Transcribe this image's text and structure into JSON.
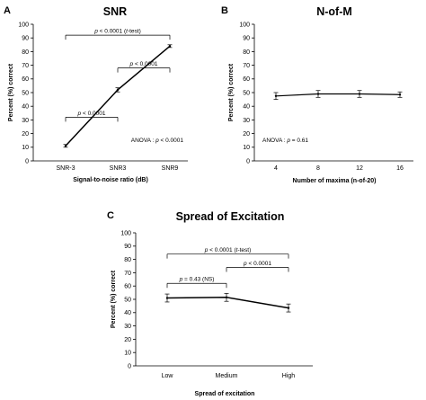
{
  "chart_data": [
    {
      "panel": "A",
      "type": "line",
      "title": "SNR",
      "xlabel": "Signal-to-noise ratio (dB)",
      "ylabel": "Percent (%) correct",
      "categories": [
        "SNR-3",
        "SNR3",
        "SNR9"
      ],
      "values": [
        11,
        52,
        84
      ],
      "errors": [
        1,
        1.5,
        1
      ],
      "ylim": [
        0,
        100
      ],
      "yticks": [
        "0",
        "10",
        "20",
        "30",
        "40",
        "50",
        "60",
        "70",
        "80",
        "90",
        "100"
      ],
      "grid": false,
      "annotations": [
        {
          "text": "p < 0.0001 (t-test)",
          "from": 0,
          "to": 2,
          "y": 92
        },
        {
          "text": "p < 0.0001",
          "from": 1,
          "to": 2,
          "y": 68
        },
        {
          "text": "p < 0.0001",
          "from": 0,
          "to": 1,
          "y": 32
        }
      ],
      "note": "ANOVA : p < 0.0001"
    },
    {
      "panel": "B",
      "type": "line",
      "title": "N-of-M",
      "xlabel": "Number of maxima (n-of-20)",
      "ylabel": "Percent (%) correct",
      "categories": [
        "4",
        "8",
        "12",
        "16"
      ],
      "values": [
        47.5,
        49,
        49,
        48.5
      ],
      "errors": [
        2.5,
        2.5,
        2.5,
        2
      ],
      "ylim": [
        0,
        100
      ],
      "yticks": [
        "0",
        "10",
        "20",
        "30",
        "40",
        "50",
        "60",
        "70",
        "80",
        "90",
        "100"
      ],
      "grid": false,
      "annotations": [],
      "note": "ANOVA : p = 0.61"
    },
    {
      "panel": "C",
      "type": "line",
      "title": "Spread of Excitation",
      "xlabel": "Spread of excitation",
      "ylabel": "Percent (%) correct",
      "categories": [
        "Low",
        "Medium",
        "High"
      ],
      "values": [
        51,
        51.5,
        43.5
      ],
      "errors": [
        3,
        3,
        3
      ],
      "ylim": [
        0,
        100
      ],
      "yticks": [
        "0",
        "10",
        "20",
        "30",
        "40",
        "50",
        "60",
        "70",
        "80",
        "90",
        "100"
      ],
      "grid": false,
      "annotations": [
        {
          "text": "p < 0.0001 (t-test)",
          "from": 0,
          "to": 2,
          "y": 84
        },
        {
          "text": "p < 0.0001",
          "from": 1,
          "to": 2,
          "y": 74
        },
        {
          "text": "p = 0.43 (NS)",
          "from": 0,
          "to": 1,
          "y": 62
        }
      ],
      "note": ""
    }
  ]
}
